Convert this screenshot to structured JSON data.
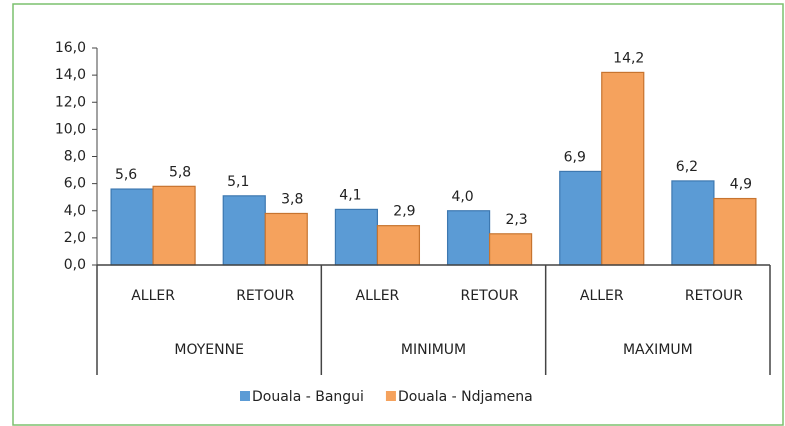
{
  "chart_data": {
    "type": "bar",
    "categories": [
      "ALLER",
      "RETOUR",
      "ALLER",
      "RETOUR",
      "ALLER",
      "RETOUR"
    ],
    "groups": [
      "MOYENNE",
      "MINIMUM",
      "MAXIMUM"
    ],
    "series": [
      {
        "name": "Douala - Bangui",
        "color": "#5b9bd5",
        "values": [
          5.6,
          5.1,
          4.1,
          4.0,
          6.9,
          6.2
        ],
        "value_labels": [
          "5,6",
          "5,1",
          "4,1",
          "4,0",
          "6,9",
          "6,2"
        ]
      },
      {
        "name": "Douala - Ndjamena",
        "color": "#f5a25d",
        "values": [
          5.8,
          3.8,
          2.9,
          2.3,
          14.2,
          4.9
        ],
        "value_labels": [
          "5,8",
          "3,8",
          "2,9",
          "2,3",
          "14,2",
          "4,9"
        ]
      }
    ],
    "ylim": [
      0,
      16
    ],
    "yticks": [
      {
        "value": 0,
        "label": "0,0"
      },
      {
        "value": 2,
        "label": "2,0"
      },
      {
        "value": 4,
        "label": "4,0"
      },
      {
        "value": 6,
        "label": "6,0"
      },
      {
        "value": 8,
        "label": "8,0"
      },
      {
        "value": 10,
        "label": "10,0"
      },
      {
        "value": 12,
        "label": "12,0"
      },
      {
        "value": 14,
        "label": "14,0"
      },
      {
        "value": 16,
        "label": "16,0"
      }
    ],
    "legend": "bottom"
  }
}
